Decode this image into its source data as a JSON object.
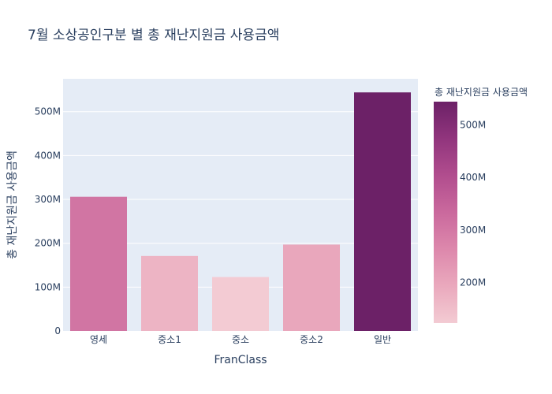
{
  "chart_data": {
    "type": "bar",
    "title": "7월 소상공인구분 별 총 재난지원금 사용금액",
    "xlabel": "FranClass",
    "ylabel": "총 재난지원금 사용금액",
    "categories": [
      "영세",
      "중소1",
      "중소",
      "중소2",
      "일반"
    ],
    "values": [
      306000000,
      171000000,
      123000000,
      197000000,
      544000000
    ],
    "ylim": [
      0,
      575000000
    ],
    "y_ticks": [
      0,
      100000000,
      200000000,
      300000000,
      400000000,
      500000000
    ],
    "y_tick_labels": [
      "0",
      "100M",
      "200M",
      "300M",
      "400M",
      "500M"
    ],
    "grid": true,
    "colorbar": {
      "title": "총 재난지원금 사용금액",
      "range": [
        123000000,
        544000000
      ],
      "ticks": [
        200000000,
        300000000,
        400000000,
        500000000
      ],
      "tick_labels": [
        "200M",
        "300M",
        "400M",
        "500M"
      ],
      "colorscale": [
        "#f3cbd3",
        "#eaa9bd",
        "#dd88ac",
        "#ca699d",
        "#b14d8e",
        "#91357d",
        "#6c2167"
      ]
    },
    "colors": {
      "plot_bg": "#e5ecf6",
      "grid": "#ffffff",
      "text": "#2a3f5f"
    }
  }
}
